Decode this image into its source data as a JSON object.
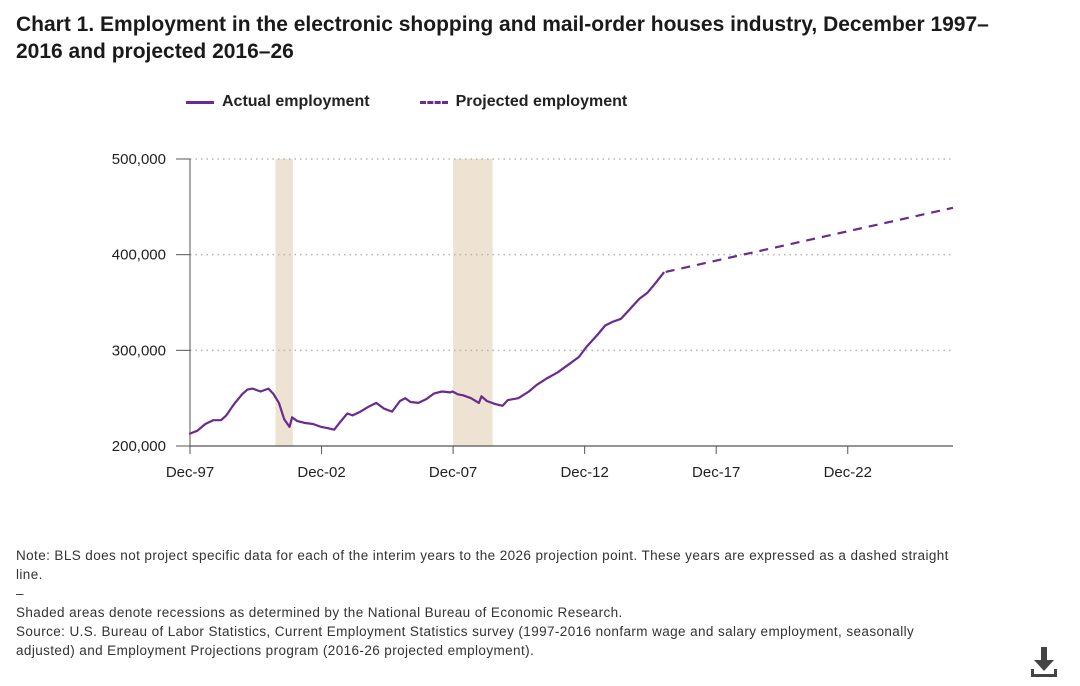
{
  "title": "Chart 1. Employment in the electronic shopping and mail-order houses industry, December 1997–2016 and projected 2016–26",
  "legend": {
    "actual": "Actual employment",
    "projected": "Projected employment"
  },
  "notes": {
    "line1": "Note: BLS does not project specific data for each of the interim years to the 2026 projection point. These years are expressed as a dashed straight line.",
    "line2": "–",
    "line3": "Shaded areas denote recessions as determined by the National Bureau of Economic Research.",
    "line4": "Source: U.S. Bureau of Labor Statistics, Current Employment Statistics survey (1997-2016 nonfarm wage and salary employment, seasonally adjusted) and Employment Projections program (2016-26 projected employment)."
  },
  "icons": {
    "download": "download-icon"
  },
  "colors": {
    "line": "#6a2a8e",
    "recession": "#eee2d2",
    "grid": "#b5b5b5",
    "axis": "#555555"
  },
  "chart_data": {
    "type": "line",
    "title": "Chart 1. Employment in the electronic shopping and mail-order houses industry, December 1997–2016 and projected 2016–26",
    "xlabel": "",
    "ylabel": "",
    "x_ticks": [
      "Dec-97",
      "Dec-02",
      "Dec-07",
      "Dec-12",
      "Dec-17",
      "Dec-22"
    ],
    "y_ticks": [
      "200,000",
      "300,000",
      "400,000",
      "500,000"
    ],
    "xlim": [
      1997.92,
      2026.92
    ],
    "ylim": [
      200000,
      500000
    ],
    "grid": "horizontal dotted",
    "legend_position": "top",
    "recessions": [
      {
        "start": 2001.17,
        "end": 2001.83
      },
      {
        "start": 2007.92,
        "end": 2009.42
      }
    ],
    "series": [
      {
        "name": "Actual employment",
        "style": "solid",
        "x": [
          1997.92,
          1998.2,
          1998.5,
          1998.8,
          1999.1,
          1999.3,
          1999.6,
          1999.9,
          2000.1,
          2000.3,
          2000.6,
          2000.9,
          2001.1,
          2001.3,
          2001.5,
          2001.7,
          2001.8,
          2002.0,
          2002.3,
          2002.6,
          2002.9,
          2003.1,
          2003.4,
          2003.6,
          2003.9,
          2004.1,
          2004.4,
          2004.7,
          2005.0,
          2005.3,
          2005.6,
          2005.9,
          2006.1,
          2006.3,
          2006.6,
          2006.9,
          2007.2,
          2007.5,
          2007.8,
          2007.9,
          2008.1,
          2008.3,
          2008.6,
          2008.9,
          2009.0,
          2009.2,
          2009.5,
          2009.8,
          2010.0,
          2010.4,
          2010.8,
          2011.1,
          2011.5,
          2011.9,
          2012.3,
          2012.7,
          2013.0,
          2013.4,
          2013.7,
          2014.0,
          2014.3,
          2014.6,
          2015.0,
          2015.3,
          2015.6,
          2015.92
        ],
        "y": [
          213000,
          216000,
          223000,
          227000,
          227000,
          232000,
          244000,
          254000,
          259000,
          260000,
          257000,
          260000,
          254000,
          245000,
          228000,
          220000,
          230000,
          226000,
          224000,
          223000,
          220000,
          219000,
          217000,
          224000,
          234000,
          232000,
          236000,
          241000,
          245000,
          239000,
          236000,
          247000,
          250000,
          246000,
          245000,
          249000,
          255000,
          257000,
          256000,
          257000,
          254000,
          253000,
          250000,
          245000,
          252000,
          247000,
          244000,
          242000,
          248000,
          250000,
          257000,
          264000,
          271000,
          277000,
          285000,
          293000,
          304000,
          316000,
          326000,
          330000,
          333000,
          342000,
          354000,
          360000,
          370000,
          381000
        ]
      },
      {
        "name": "Projected employment",
        "style": "dashed",
        "x": [
          2016.0,
          2026.92
        ],
        "y": [
          382000,
          449000
        ]
      }
    ]
  }
}
